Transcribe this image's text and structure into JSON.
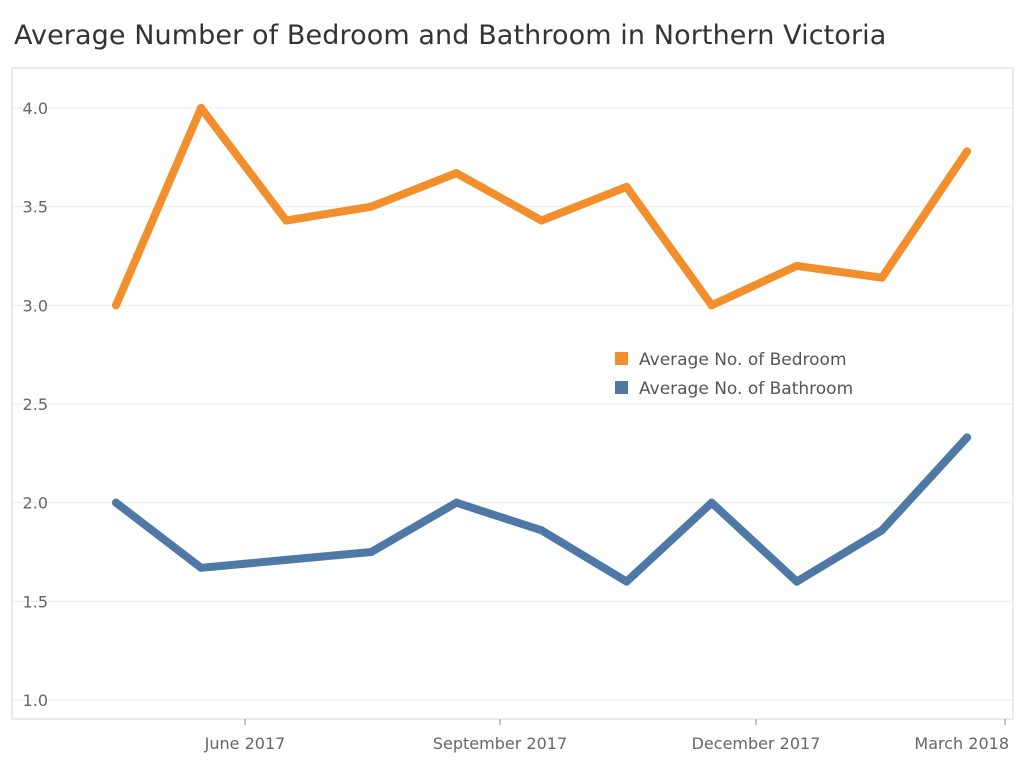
{
  "chart_data": {
    "type": "line",
    "title": "Average Number of Bedroom and Bathroom in Northern Victoria",
    "xlabel": "",
    "ylabel": "",
    "x": [
      "2017-04",
      "2017-05",
      "2017-06",
      "2017-07",
      "2017-08",
      "2017-09",
      "2017-10",
      "2017-11",
      "2017-12",
      "2018-01",
      "2018-02"
    ],
    "x_tick_labels": [
      "June 2017",
      "September 2017",
      "December 2017",
      "March 2018"
    ],
    "y_tick_labels": [
      "1.0",
      "1.5",
      "2.0",
      "2.5",
      "3.0",
      "3.5",
      "4.0"
    ],
    "ylim": [
      1.0,
      4.0
    ],
    "grid": "horizontal",
    "legend_position": "center-right",
    "series": [
      {
        "name": "Average No. of Bedroom",
        "color": "#F28E2B",
        "values": [
          3.0,
          4.0,
          3.43,
          3.5,
          3.67,
          3.43,
          3.6,
          3.0,
          3.2,
          3.14,
          3.78
        ]
      },
      {
        "name": "Average No. of Bathroom",
        "color": "#4E79A7",
        "values": [
          2.0,
          1.67,
          1.71,
          1.75,
          2.0,
          1.86,
          1.6,
          2.0,
          1.6,
          1.86,
          2.33
        ]
      }
    ]
  }
}
